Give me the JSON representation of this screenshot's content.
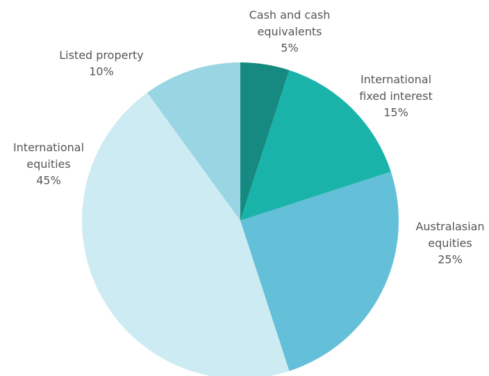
{
  "chart_data": {
    "type": "pie",
    "categories": [
      "Cash and cash\nequivalents",
      "International\nfixed interest",
      "Australasian\nequities",
      "International\nequities",
      "Listed property"
    ],
    "values": [
      5,
      15,
      25,
      45,
      10
    ],
    "value_labels": [
      "5%",
      "15%",
      "25%",
      "45%",
      "10%"
    ],
    "colors": [
      "#168a80",
      "#1ab3aa",
      "#64bfd8",
      "#cdebf2",
      "#9ad5e3"
    ]
  }
}
